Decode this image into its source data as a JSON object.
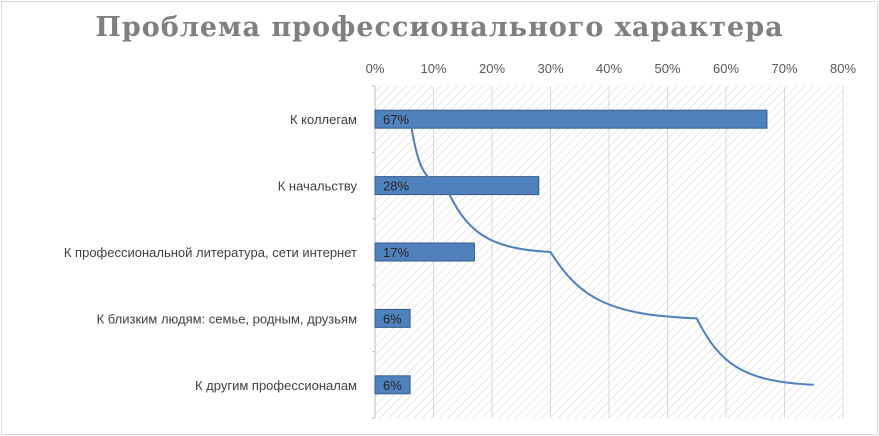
{
  "chart_data": {
    "type": "bar",
    "orientation": "horizontal",
    "title": "Проблема профессионального характера",
    "categories": [
      "К коллегам",
      "К начальству",
      "К профессиональной литература, сети интернет",
      "К близким людям: семье, родным, друзьям",
      "К другим профессионалам"
    ],
    "values": [
      67,
      28,
      17,
      6,
      6
    ],
    "data_labels": [
      "67%",
      "28%",
      "17%",
      "6%",
      "6%"
    ],
    "xlim": [
      0,
      80
    ],
    "x_ticks": [
      "0%",
      "10%",
      "20%",
      "30%",
      "40%",
      "50%",
      "60%",
      "70%",
      "80%"
    ],
    "x_axis_position": "top",
    "grid": true,
    "plot_background": "hatched",
    "trendline": {
      "type": "logarithmic",
      "points": [
        [
          6,
          5
        ],
        [
          12,
          4
        ],
        [
          30,
          3
        ],
        [
          55,
          2
        ],
        [
          75,
          1
        ]
      ]
    },
    "colors": {
      "bar": "#4f81bd",
      "bar_border": "#385d8a",
      "trendline": "#4f81bd",
      "title": "#7f7f7f",
      "grid": "#d9d9d9"
    }
  }
}
